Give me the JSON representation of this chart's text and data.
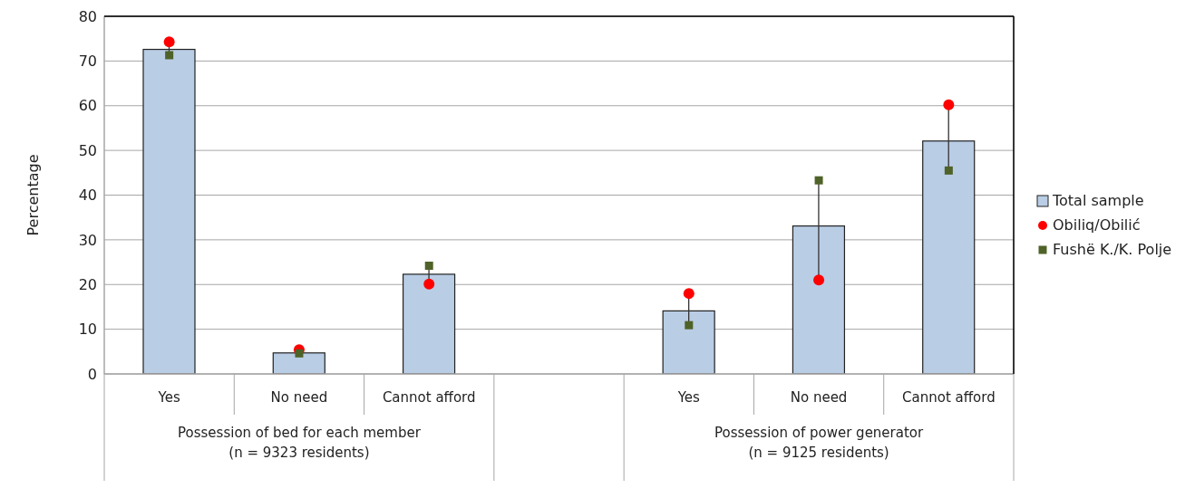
{
  "chart_data": {
    "type": "bar",
    "ylabel": "Percentage",
    "categories": [
      "Yes",
      "No need",
      "Cannot afford",
      null,
      "Yes",
      "No need",
      "Cannot afford"
    ],
    "series": [
      {
        "name": "Total sample",
        "color": "#b9cde5",
        "values": [
          72.6,
          4.7,
          22.3,
          null,
          14.1,
          33.1,
          52.1
        ]
      },
      {
        "name": "Obiliq/Obilić",
        "type": "scatter",
        "marker": "circle",
        "color": "#ff0000",
        "values": [
          74.3,
          5.4,
          20.1,
          null,
          18.0,
          21.0,
          60.2
        ]
      },
      {
        "name": "Fushë K./K. Polje",
        "type": "scatter",
        "marker": "square",
        "color": "#4f6228",
        "values": [
          71.3,
          4.6,
          24.2,
          null,
          10.9,
          43.3,
          45.5
        ]
      }
    ],
    "annotations": [
      "Possession of bed for each member\n(n = 9323 residents)",
      "Possession of power generator\n(n = 9125 residents)"
    ],
    "ylim": [
      0,
      80
    ],
    "yticks": [
      0,
      10,
      20,
      30,
      40,
      50,
      60,
      70,
      80
    ],
    "grid": "y",
    "legend": "right"
  }
}
